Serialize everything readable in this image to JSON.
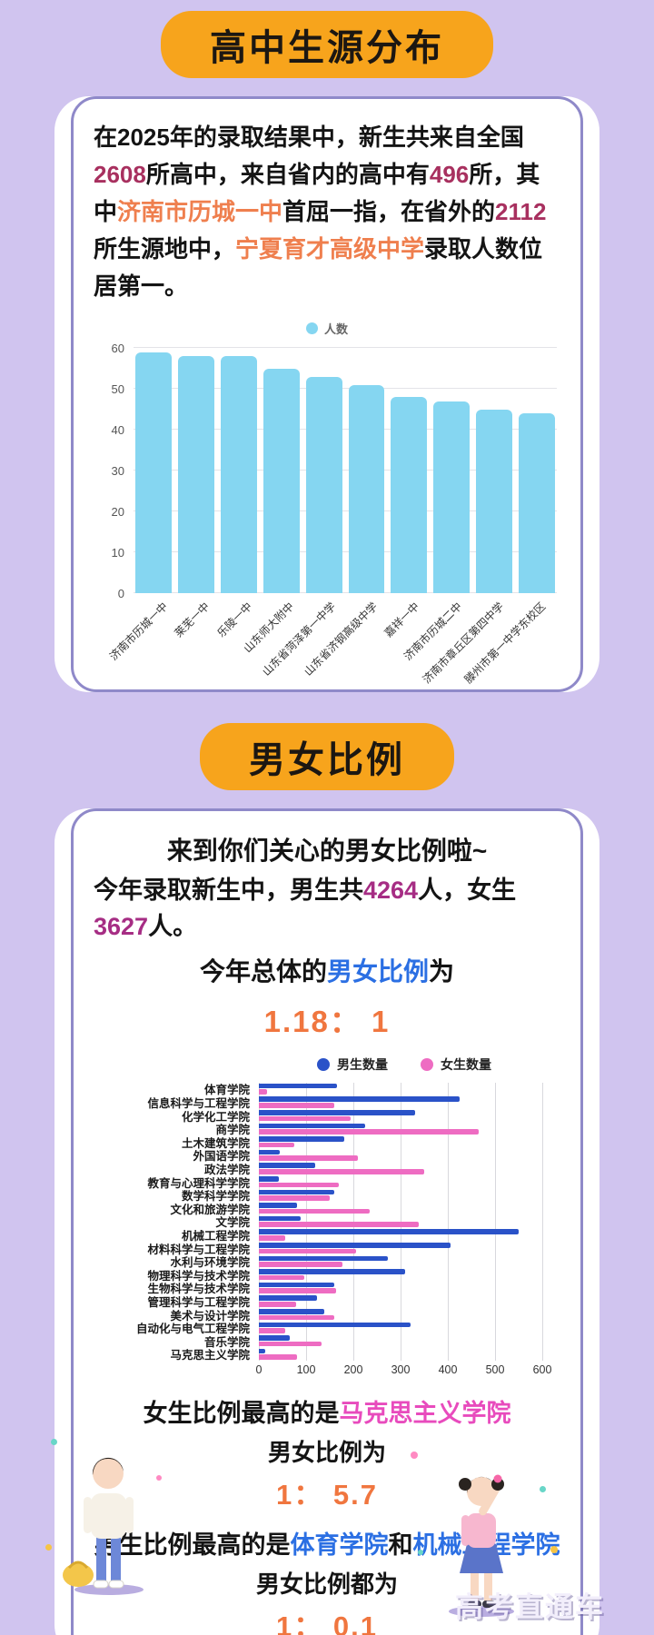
{
  "page": {
    "watermark": "高考直通车"
  },
  "colors": {
    "background": "#d0c4ef",
    "badge": "#f7a41c",
    "card_border": "#8f89c9",
    "maroon_number": "#a8305f",
    "orange_highlight": "#ef7f4e",
    "magenta_number": "#a62d84",
    "blue_highlight": "#2b6fe3",
    "pink_highlight": "#e84bbd",
    "ratio_orange": "#f0763f"
  },
  "section_highschool": {
    "badge": "高中生源分布",
    "intro": {
      "t1": "在2025年的录取结果中，新生共来自全国",
      "n1": "2608",
      "t2": "所高中，来自省内的高中有",
      "n2": "496",
      "t3": "所，其中",
      "hl1": "济南市历城一中",
      "t4": "首屈一指，在省外的",
      "n3": "2112",
      "t5": "所生源地中，",
      "hl2": "宁夏育才高级中学",
      "t6": "录取人数位居第一。"
    }
  },
  "section_gender": {
    "badge": "男女比例",
    "lead": "来到你们关心的男女比例啦~",
    "line2": {
      "t1": "今年录取新生中，男生共",
      "n1": "4264",
      "t2": "人，女生"
    },
    "line3": {
      "n1": "3627",
      "t1": "人。"
    },
    "line4": {
      "t1": "今年总体的",
      "hl": "男女比例",
      "t2": "为"
    },
    "overall_ratio": "1.18： 1",
    "bottom": {
      "b1t1": "女生比例最高的是",
      "b1hl": "马克思主义学院",
      "b2": "男女比例为",
      "b3": "1： 5.7",
      "b4t1": "男生比例最高的是",
      "b4hl1": "体育学院",
      "b4t2": "和",
      "b4hl2": "机械工程学院",
      "b5": "男女比例都为",
      "b6": "1： 0.1"
    }
  },
  "chart_data": [
    {
      "type": "bar",
      "legend": "人数",
      "categories": [
        "济南市历城一中",
        "莱芜一中",
        "乐陵一中",
        "山东师大附中",
        "山东省菏泽第一中学",
        "山东省济钢高级中学",
        "嘉祥一中",
        "济南市历城二中",
        "济南市章丘区第四中学",
        "滕州市第一中学东校区"
      ],
      "values": [
        59,
        58,
        58,
        55,
        53,
        51,
        48,
        47,
        45,
        44
      ],
      "ylim": [
        0,
        60
      ],
      "yticks": [
        0,
        10,
        20,
        30,
        40,
        50,
        60
      ],
      "bar_color": "#85d6f1",
      "grid": true,
      "legend_position": "top"
    },
    {
      "type": "bar-horizontal",
      "categories": [
        "体育学院",
        "信息科学与工程学院",
        "化学化工学院",
        "商学院",
        "土木建筑学院",
        "外国语学院",
        "政法学院",
        "教育与心理科学学院",
        "数学科学学院",
        "文化和旅游学院",
        "文学院",
        "机械工程学院",
        "材料科学与工程学院",
        "水利与环境学院",
        "物理科学与技术学院",
        "生物科学与技术学院",
        "管理科学与工程学院",
        "美术与设计学院",
        "自动化与电气工程学院",
        "音乐学院",
        "马克思主义学院"
      ],
      "series": [
        {
          "name": "男生数量",
          "color": "#2a52c8",
          "values": [
            165,
            425,
            330,
            225,
            180,
            45,
            120,
            42,
            160,
            80,
            88,
            550,
            405,
            273,
            310,
            159,
            123,
            139,
            322,
            66,
            14
          ]
        },
        {
          "name": "女生数量",
          "color": "#ee6cc2",
          "values": [
            17,
            160,
            195,
            465,
            75,
            210,
            350,
            170,
            150,
            235,
            338,
            55,
            205,
            177,
            96,
            163,
            78,
            159,
            55,
            133,
            80
          ]
        }
      ],
      "xlim": [
        0,
        600
      ],
      "xticks": [
        0,
        100,
        200,
        300,
        400,
        500,
        600
      ],
      "grid": true,
      "legend_position": "top"
    }
  ]
}
